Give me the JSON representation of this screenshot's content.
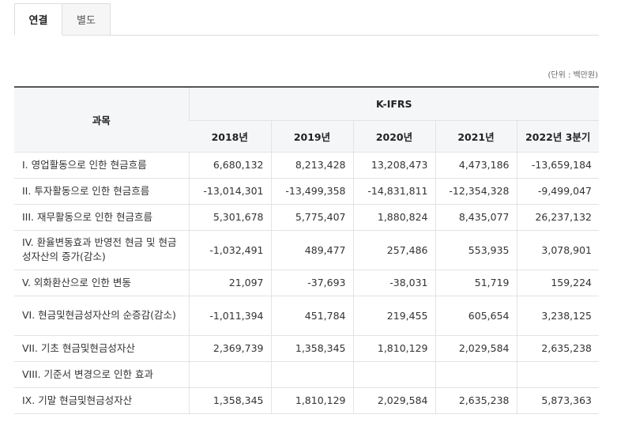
{
  "tabs": [
    {
      "label": "연결",
      "active": true
    },
    {
      "label": "별도",
      "active": false
    }
  ],
  "unit_note": "(단위 : 백만원)",
  "table": {
    "subject_header": "과목",
    "standard_header": "K-IFRS",
    "years": [
      "2018년",
      "2019년",
      "2020년",
      "2021년",
      "2022년 3분기"
    ],
    "rows": [
      {
        "label": "I. 영업활동으로 인한 현금흐름",
        "values": [
          "6,680,132",
          "8,213,428",
          "13,208,473",
          "4,473,186",
          "-13,659,184"
        ]
      },
      {
        "label": "II. 투자활동으로 인한 현금흐름",
        "values": [
          "-13,014,301",
          "-13,499,358",
          "-14,831,811",
          "-12,354,328",
          "-9,499,047"
        ]
      },
      {
        "label": "III. 재무활동으로 인한 현금흐름",
        "values": [
          "5,301,678",
          "5,775,407",
          "1,880,824",
          "8,435,077",
          "26,237,132"
        ]
      },
      {
        "label": "IV. 환율변동효과 반영전 현금 및 현금성자산의 증가(감소)",
        "values": [
          "-1,032,491",
          "489,477",
          "257,486",
          "553,935",
          "3,078,901"
        ]
      },
      {
        "label": "V. 외화환산으로 인한 변동",
        "values": [
          "21,097",
          "-37,693",
          "-38,031",
          "51,719",
          "159,224"
        ]
      },
      {
        "label": "VI. 현금및현금성자산의 순증감(감소)",
        "values": [
          "-1,011,394",
          "451,784",
          "219,455",
          "605,654",
          "3,238,125"
        ]
      },
      {
        "label": "VII. 기초 현금및현금성자산",
        "values": [
          "2,369,739",
          "1,358,345",
          "1,810,129",
          "2,029,584",
          "2,635,238"
        ]
      },
      {
        "label": "VIII. 기준서 변경으로 인한 효과",
        "values": [
          "",
          "",
          "",
          "",
          ""
        ]
      },
      {
        "label": "IX. 기말 현금및현금성자산",
        "values": [
          "1,358,345",
          "1,810,129",
          "2,029,584",
          "2,635,238",
          "5,873,363"
        ]
      }
    ]
  }
}
